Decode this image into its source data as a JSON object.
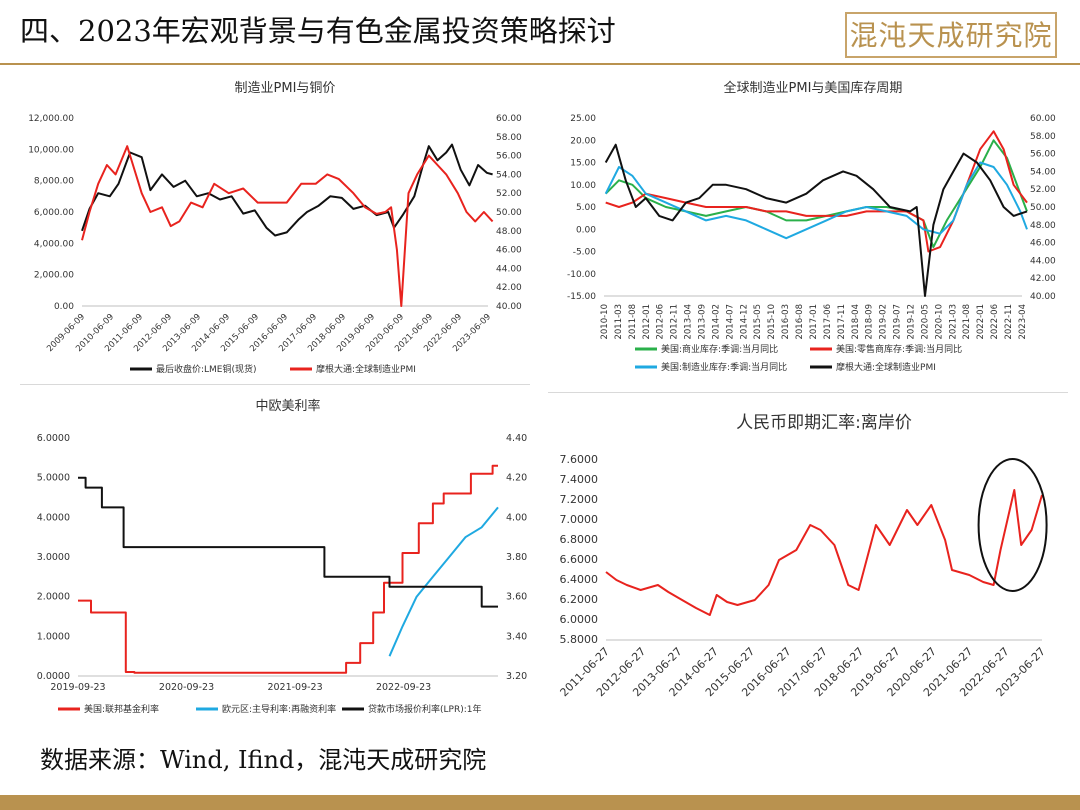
{
  "header": {
    "title": "四、2023年宏观背景与有色金属投资策略探讨",
    "logo_text": "混沌天成研究院"
  },
  "footer": {
    "source": "数据来源：Wind, Ifind，混沌天成研究院"
  },
  "colors": {
    "accent": "#b9924f",
    "red": "#e8231e",
    "black": "#111111",
    "green": "#2ab04a",
    "cyan": "#1fa9e1"
  },
  "charts": [
    {
      "id": "chart1",
      "type": "line",
      "title": "制造业PMI与铜价",
      "x_ticks": [
        "2009-06-09",
        "2010-06-09",
        "2011-06-09",
        "2012-06-09",
        "2013-06-09",
        "2014-06-09",
        "2015-06-09",
        "2016-06-09",
        "2017-06-09",
        "2018-06-09",
        "2019-06-09",
        "2020-06-09",
        "2021-06-09",
        "2022-06-09",
        "2023-06-09"
      ],
      "y_left_ticks": [
        "0.00",
        "2,000.00",
        "4,000.00",
        "6,000.00",
        "8,000.00",
        "10,000.00",
        "12,000.00"
      ],
      "y_left_range": [
        0,
        12000
      ],
      "y_right_ticks": [
        "40.00",
        "42.00",
        "44.00",
        "46.00",
        "48.00",
        "50.00",
        "52.00",
        "54.00",
        "56.00",
        "58.00",
        "60.00"
      ],
      "y_right_range": [
        40,
        60
      ],
      "legend": [
        "最后收盘价:LME铜(现货)",
        "摩根大通:全球制造业PMI"
      ],
      "series": [
        {
          "name": "最后收盘价:LME铜(现货)",
          "axis": "left",
          "color": "#111111",
          "x": [
            2009.44,
            2009.7,
            2010.0,
            2010.4,
            2010.7,
            2011.1,
            2011.5,
            2011.8,
            2012.2,
            2012.6,
            2013.0,
            2013.4,
            2013.8,
            2014.2,
            2014.6,
            2015.0,
            2015.4,
            2015.8,
            2016.1,
            2016.5,
            2016.9,
            2017.2,
            2017.6,
            2018.0,
            2018.4,
            2018.8,
            2019.2,
            2019.6,
            2020.0,
            2020.2,
            2020.5,
            2020.9,
            2021.2,
            2021.4,
            2021.7,
            2022.0,
            2022.2,
            2022.5,
            2022.8,
            2023.1,
            2023.4,
            2023.6
          ],
          "y": [
            4800,
            6200,
            7200,
            7000,
            7800,
            9800,
            9500,
            7400,
            8400,
            7600,
            8000,
            7000,
            7200,
            6800,
            7000,
            5900,
            6100,
            5000,
            4500,
            4700,
            5500,
            6000,
            6400,
            7000,
            6900,
            6200,
            6400,
            5800,
            6000,
            5000,
            5800,
            7000,
            9000,
            10200,
            9300,
            9800,
            10300,
            8700,
            7700,
            9000,
            8500,
            8400
          ]
        },
        {
          "name": "摩根大通:全球制造业PMI",
          "axis": "right",
          "color": "#e8231e",
          "x": [
            2009.44,
            2009.7,
            2010.0,
            2010.3,
            2010.6,
            2011.0,
            2011.2,
            2011.5,
            2011.8,
            2012.2,
            2012.5,
            2012.8,
            2013.2,
            2013.6,
            2014.0,
            2014.5,
            2015.0,
            2015.5,
            2016.0,
            2016.5,
            2017.0,
            2017.5,
            2017.9,
            2018.3,
            2018.8,
            2019.2,
            2019.6,
            2019.9,
            2020.1,
            2020.3,
            2020.45,
            2020.7,
            2021.0,
            2021.4,
            2021.7,
            2022.0,
            2022.4,
            2022.7,
            2023.0,
            2023.3,
            2023.6
          ],
          "y": [
            47,
            50,
            53,
            55,
            54,
            57,
            55,
            52,
            50,
            50.5,
            48.5,
            49,
            51,
            50.5,
            53,
            52,
            52.5,
            51,
            51,
            51,
            53,
            53,
            54,
            53.5,
            52,
            50.5,
            49.8,
            50,
            50.5,
            46,
            40,
            52,
            54,
            56,
            55,
            54,
            52,
            50,
            49,
            50,
            49
          ]
        }
      ]
    },
    {
      "id": "chart2",
      "type": "line",
      "title": "全球制造业PMI与美国库存周期",
      "x_ticks": [
        "2010-10",
        "2011-03",
        "2011-08",
        "2012-01",
        "2012-06",
        "2012-11",
        "2013-04",
        "2013-09",
        "2014-02",
        "2014-07",
        "2014-12",
        "2015-05",
        "2015-10",
        "2016-03",
        "2016-08",
        "2017-01",
        "2017-06",
        "2017-11",
        "2018-04",
        "2018-09",
        "2019-02",
        "2019-07",
        "2019-12",
        "2020-05",
        "2020-10",
        "2021-03",
        "2021-08",
        "2022-01",
        "2022-06",
        "2022-11",
        "2023-04"
      ],
      "y_left_ticks": [
        "-15.00",
        "-10.00",
        "-5.00",
        "0.00",
        "5.00",
        "10.00",
        "15.00",
        "20.00",
        "25.00"
      ],
      "y_left_range": [
        -15,
        25
      ],
      "y_right_ticks": [
        "40.00",
        "42.00",
        "44.00",
        "46.00",
        "48.00",
        "50.00",
        "52.00",
        "54.00",
        "56.00",
        "58.00",
        "60.00"
      ],
      "y_right_range": [
        40,
        60
      ],
      "legend": [
        "美国:商业库存:季调:当月同比",
        "美国:零售商库存:季调:当月同比",
        "美国:制造业库存:季调:当月同比",
        "摩根大通:全球制造业PMI"
      ],
      "series": [
        {
          "name": "美国:商业库存:季调:当月同比",
          "axis": "left",
          "color": "#2ab04a",
          "x": [
            2010.8,
            2011.2,
            2011.6,
            2012.0,
            2012.6,
            2013.2,
            2013.8,
            2014.4,
            2015.0,
            2015.6,
            2016.2,
            2016.8,
            2017.4,
            2018.0,
            2018.6,
            2019.2,
            2019.8,
            2020.3,
            2020.6,
            2021.0,
            2021.5,
            2022.0,
            2022.4,
            2022.8,
            2023.2,
            2023.4
          ],
          "y": [
            8,
            11,
            10,
            7,
            5,
            4,
            3,
            4,
            5,
            4,
            2,
            2,
            3,
            4,
            5,
            5,
            4,
            2,
            -4,
            2,
            8,
            14,
            20,
            16,
            8,
            4
          ]
        },
        {
          "name": "美国:零售商库存:季调:当月同比",
          "axis": "left",
          "color": "#e8231e",
          "x": [
            2010.8,
            2011.2,
            2011.6,
            2012.0,
            2012.6,
            2013.2,
            2013.8,
            2014.4,
            2015.0,
            2015.6,
            2016.2,
            2016.8,
            2017.4,
            2018.0,
            2018.6,
            2019.2,
            2019.8,
            2020.3,
            2020.45,
            2020.8,
            2021.2,
            2021.6,
            2022.0,
            2022.4,
            2022.7,
            2023.0,
            2023.4
          ],
          "y": [
            6,
            5,
            6,
            8,
            7,
            6,
            5,
            5,
            5,
            4,
            4,
            3,
            3,
            3,
            4,
            4,
            4,
            2,
            -5,
            -4,
            2,
            10,
            18,
            22,
            18,
            10,
            6
          ]
        },
        {
          "name": "美国:制造业库存:季调:当月同比",
          "axis": "left",
          "color": "#1fa9e1",
          "x": [
            2010.8,
            2011.2,
            2011.6,
            2012.0,
            2012.6,
            2013.2,
            2013.8,
            2014.4,
            2015.0,
            2015.6,
            2016.2,
            2016.8,
            2017.4,
            2018.0,
            2018.6,
            2019.2,
            2019.8,
            2020.3,
            2020.8,
            2021.2,
            2021.6,
            2022.0,
            2022.4,
            2022.8,
            2023.2,
            2023.4
          ],
          "y": [
            8,
            14,
            12,
            8,
            6,
            4,
            2,
            3,
            2,
            0,
            -2,
            0,
            2,
            4,
            5,
            4,
            3,
            0,
            -1,
            2,
            10,
            15,
            14,
            10,
            4,
            0
          ]
        },
        {
          "name": "摩根大通:全球制造业PMI",
          "axis": "right",
          "color": "#111111",
          "x": [
            2010.8,
            2011.1,
            2011.4,
            2011.7,
            2012.0,
            2012.4,
            2012.8,
            2013.2,
            2013.6,
            2014.0,
            2014.4,
            2015.0,
            2015.6,
            2016.2,
            2016.8,
            2017.3,
            2017.9,
            2018.3,
            2018.8,
            2019.3,
            2019.9,
            2020.1,
            2020.35,
            2020.6,
            2020.9,
            2021.2,
            2021.5,
            2021.9,
            2022.3,
            2022.7,
            2023.0,
            2023.4
          ],
          "y": [
            55,
            57,
            53,
            50,
            51,
            49,
            48.5,
            50.5,
            51,
            52.5,
            52.5,
            52,
            51,
            50.5,
            51.5,
            53,
            54,
            53.5,
            52,
            50,
            49.5,
            50,
            40,
            48,
            52,
            54,
            56,
            55,
            53,
            50,
            49,
            49.5
          ]
        }
      ]
    },
    {
      "id": "chart3",
      "type": "line",
      "title": "中欧美利率",
      "x_ticks": [
        "2019-09-23",
        "2020-09-23",
        "2021-09-23",
        "2022-09-23"
      ],
      "y_left_ticks": [
        "0.0000",
        "1.0000",
        "2.0000",
        "3.0000",
        "4.0000",
        "5.0000",
        "6.0000"
      ],
      "y_left_range": [
        0,
        6
      ],
      "y_right_ticks": [
        "3.20",
        "3.40",
        "3.60",
        "3.80",
        "4.00",
        "4.20",
        "4.40"
      ],
      "y_right_range": [
        3.2,
        4.4
      ],
      "legend": [
        "美国:联邦基金利率",
        "欧元区:主导利率:再融资利率",
        "贷款市场报价利率(LPR):1年"
      ],
      "series": [
        {
          "name": "美国:联邦基金利率",
          "axis": "left",
          "color": "#e8231e",
          "step": true,
          "x": [
            2019.73,
            2019.85,
            2020.17,
            2020.25,
            2022.2,
            2022.33,
            2022.45,
            2022.55,
            2022.72,
            2022.87,
            2023.0,
            2023.1,
            2023.35,
            2023.55,
            2023.6
          ],
          "y": [
            1.9,
            1.6,
            0.1,
            0.08,
            0.33,
            0.83,
            1.6,
            2.35,
            3.1,
            3.85,
            4.35,
            4.6,
            5.1,
            5.3,
            5.3
          ]
        },
        {
          "name": "欧元区:主导利率:再融资利率",
          "axis": "left",
          "color": "#1fa9e1",
          "x": [
            2022.6,
            2022.72,
            2022.85,
            2023.0,
            2023.15,
            2023.3,
            2023.45,
            2023.6
          ],
          "y": [
            0.5,
            1.25,
            2.0,
            2.5,
            3.0,
            3.5,
            3.75,
            4.25
          ]
        },
        {
          "name": "贷款市场报价利率(LPR):1年",
          "axis": "right",
          "color": "#111111",
          "step": true,
          "x": [
            2019.73,
            2019.8,
            2019.95,
            2020.15,
            2020.3,
            2021.9,
            2022.0,
            2022.6,
            2022.65,
            2023.45,
            2023.6
          ],
          "y": [
            4.2,
            4.15,
            4.05,
            3.85,
            3.85,
            3.85,
            3.7,
            3.65,
            3.65,
            3.55,
            3.55
          ]
        }
      ]
    },
    {
      "id": "chart4",
      "type": "line",
      "title": "人民币即期汇率:离岸价",
      "x_ticks": [
        "2011-06-27",
        "2012-06-27",
        "2013-06-27",
        "2014-06-27",
        "2015-06-27",
        "2016-06-27",
        "2017-06-27",
        "2018-06-27",
        "2019-06-27",
        "2020-06-27",
        "2021-06-27",
        "2022-06-27",
        "2023-06-27"
      ],
      "y_left_ticks": [
        "5.8000",
        "6.0000",
        "6.2000",
        "6.4000",
        "6.6000",
        "6.8000",
        "7.0000",
        "7.2000",
        "7.4000",
        "7.6000"
      ],
      "y_left_range": [
        5.8,
        7.6
      ],
      "legend": [],
      "series": [
        {
          "name": "",
          "axis": "left",
          "color": "#e8231e",
          "x": [
            2011.0,
            2011.3,
            2011.6,
            2012.0,
            2012.5,
            2012.8,
            2013.2,
            2013.6,
            2014.0,
            2014.2,
            2014.5,
            2014.8,
            2015.3,
            2015.7,
            2016.0,
            2016.5,
            2016.9,
            2017.2,
            2017.6,
            2018.0,
            2018.3,
            2018.8,
            2019.2,
            2019.7,
            2020.0,
            2020.4,
            2020.8,
            2021.0,
            2021.5,
            2021.9,
            2022.2,
            2022.4,
            2022.8,
            2023.0,
            2023.3,
            2023.6
          ],
          "y": [
            6.48,
            6.4,
            6.35,
            6.3,
            6.35,
            6.28,
            6.2,
            6.12,
            6.05,
            6.25,
            6.18,
            6.15,
            6.2,
            6.35,
            6.6,
            6.7,
            6.95,
            6.9,
            6.75,
            6.35,
            6.3,
            6.95,
            6.75,
            7.1,
            6.95,
            7.15,
            6.8,
            6.5,
            6.45,
            6.38,
            6.35,
            6.7,
            7.3,
            6.75,
            6.9,
            7.25
          ]
        }
      ]
    }
  ]
}
